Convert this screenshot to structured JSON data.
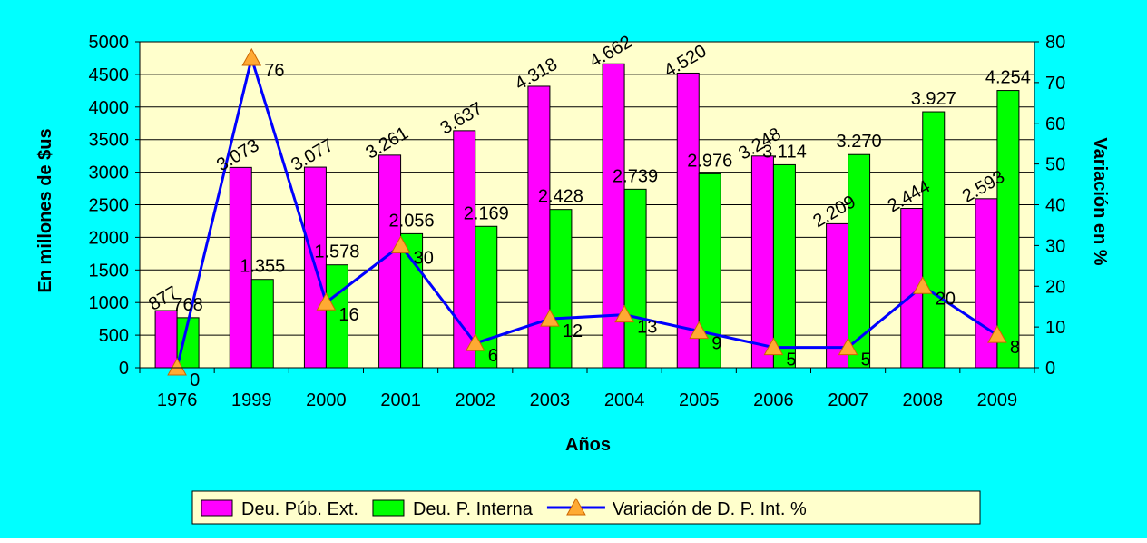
{
  "chart_data": {
    "type": "bar",
    "title": "",
    "xlabel": "Años",
    "ylabel": "En millones de $us",
    "y2label": "Variación en %",
    "categories": [
      "1976",
      "1999",
      "2000",
      "2001",
      "2002",
      "2003",
      "2004",
      "2005",
      "2006",
      "2007",
      "2008",
      "2009"
    ],
    "ylim": [
      0,
      5000
    ],
    "y2lim": [
      0,
      80
    ],
    "yticks": [
      0,
      500,
      1000,
      1500,
      2000,
      2500,
      3000,
      3500,
      4000,
      4500,
      5000
    ],
    "y2ticks": [
      0,
      10,
      20,
      30,
      40,
      50,
      60,
      70,
      80
    ],
    "grid": true,
    "legend_position": "bottom",
    "series": [
      {
        "name": "Deu. Púb. Ext.",
        "type": "bar",
        "axis": "left",
        "color": "#ff00ff",
        "values": [
          877,
          3073,
          3077,
          3261,
          3637,
          4318,
          4662,
          4520,
          3248,
          2209,
          2444,
          2593
        ],
        "labels": [
          "877",
          "3.073",
          "3.077",
          "3.261",
          "3.637",
          "4.318",
          "4.662",
          "4.520",
          "3.248",
          "2.209",
          "2.444",
          "2.593"
        ]
      },
      {
        "name": "Deu. P. Interna",
        "type": "bar",
        "axis": "left",
        "color": "#00ff00",
        "values": [
          768,
          1355,
          1578,
          2056,
          2169,
          2428,
          2739,
          2976,
          3114,
          3270,
          3927,
          4254
        ],
        "labels": [
          "768",
          "1.355",
          "1.578",
          "2.056",
          "2.169",
          "2.428",
          "2.739",
          "2.976",
          "3.114",
          "3.270",
          "3.927",
          "4.254"
        ]
      },
      {
        "name": "Variación de D. P. Int. %",
        "type": "line",
        "axis": "right",
        "color": "#0000ff",
        "marker_color": "#ffaa33",
        "values": [
          0,
          76,
          16,
          30,
          6,
          12,
          13,
          9,
          5,
          5,
          20,
          8
        ],
        "labels": [
          "0",
          "76",
          "16",
          "30",
          "6",
          "12",
          "13",
          "9",
          "5",
          "5",
          "20",
          "8"
        ]
      }
    ],
    "colors": {
      "background": "#00ffff",
      "plot_area": "#ffffcc"
    }
  }
}
